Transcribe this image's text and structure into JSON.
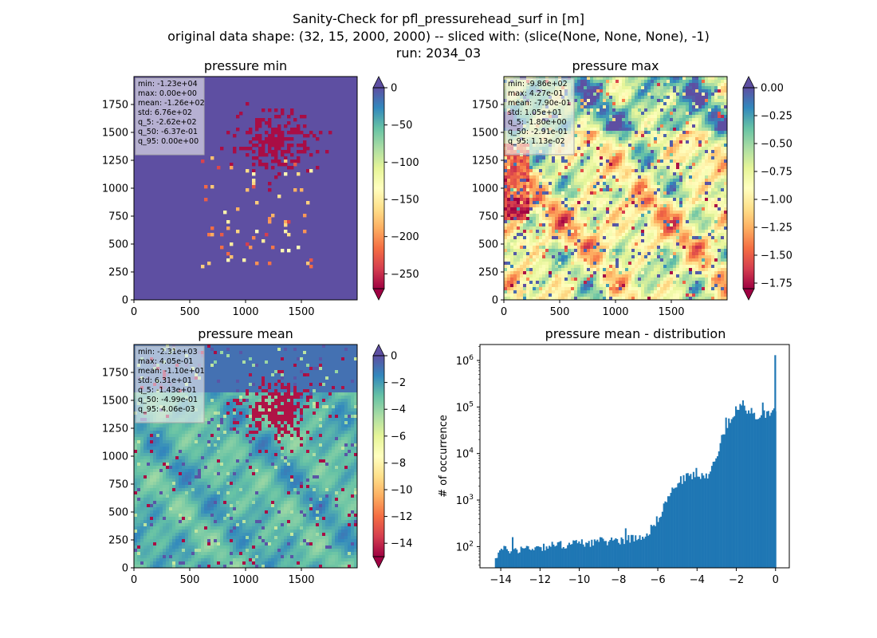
{
  "suptitle": [
    "Sanity-Check for pfl_pressurehead_surf in [m]",
    "original data shape: (32, 15, 2000, 2000) -- sliced with: (slice(None, None, None), -1)",
    "run: 2034_03"
  ],
  "colors": {
    "spectral": [
      "#9e0142",
      "#d53e4f",
      "#f46d43",
      "#fdae61",
      "#fee08b",
      "#ffffbf",
      "#e6f598",
      "#abdda4",
      "#66c2a5",
      "#3288bd",
      "#5e4fa2"
    ],
    "hist_bar": "#1f77b4",
    "min_bg": "#5e4fa2"
  },
  "chart_data": [
    {
      "type": "heatmap",
      "title": "pressure min",
      "xlim": [
        0,
        2000
      ],
      "ylim": [
        0,
        2000
      ],
      "x_ticks": [
        "0",
        "500",
        "1000",
        "1500"
      ],
      "y_ticks": [
        "0",
        "250",
        "500",
        "750",
        "1000",
        "1250",
        "1500",
        "1750"
      ],
      "colorbar": {
        "range": [
          -270,
          0
        ],
        "ticks": [
          "0",
          "−50",
          "−100",
          "−150",
          "−200",
          "−250"
        ],
        "extend": "both"
      },
      "stats": [
        "min: -1.23e+04",
        "max: 0.00e+00",
        "mean: -1.26e+02",
        "std: 6.76e+02",
        "q_5: -2.62e+02",
        "q_50: -6.37e-01",
        "q_95: 0.00e+00"
      ]
    },
    {
      "type": "heatmap",
      "title": "pressure max",
      "xlim": [
        0,
        2000
      ],
      "ylim": [
        0,
        2000
      ],
      "x_ticks": [
        "0",
        "500",
        "1000",
        "1500"
      ],
      "y_ticks": [
        "0",
        "250",
        "500",
        "750",
        "1000",
        "1250",
        "1500",
        "1750"
      ],
      "colorbar": {
        "range": [
          -1.8,
          0
        ],
        "ticks": [
          "0.00",
          "−0.25",
          "−0.50",
          "−0.75",
          "−1.00",
          "−1.25",
          "−1.50",
          "−1.75"
        ],
        "extend": "both"
      },
      "stats": [
        "min: -9.86e+02",
        "max: 4.27e-01",
        "mean: -7.90e-01",
        "std: 1.05e+01",
        "q_5: -1.80e+00",
        "q_50: -2.91e-01",
        "q_95: 1.13e-02"
      ]
    },
    {
      "type": "heatmap",
      "title": "pressure mean",
      "xlim": [
        0,
        2000
      ],
      "ylim": [
        0,
        2000
      ],
      "x_ticks": [
        "0",
        "500",
        "1000",
        "1500"
      ],
      "y_ticks": [
        "0",
        "250",
        "500",
        "750",
        "1000",
        "1250",
        "1500",
        "1750"
      ],
      "colorbar": {
        "range": [
          -15,
          0
        ],
        "ticks": [
          "0",
          "−2",
          "−4",
          "−6",
          "−8",
          "−10",
          "−12",
          "−14"
        ],
        "extend": "both"
      },
      "stats": [
        "min: -2.31e+03",
        "max: 4.05e-01",
        "mean: -1.10e+01",
        "std: 6.31e+01",
        "q_5: -1.43e+01",
        "q_50: -4.99e-01",
        "q_95: 4.06e-03"
      ]
    },
    {
      "type": "bar",
      "title": "pressure mean - distribution",
      "xlabel": "",
      "ylabel": "# of occurrence",
      "yscale": "log",
      "xlim": [
        -15.06,
        0.7
      ],
      "ylim": [
        35,
        2200000
      ],
      "x_ticks": [
        "−14",
        "−12",
        "−10",
        "−8",
        "−6",
        "−4",
        "−2",
        "0"
      ],
      "y_ticks": [
        "10^2",
        "10^3",
        "10^4",
        "10^5",
        "10^6"
      ],
      "bin_start": -14.3,
      "bin_width": 0.072,
      "profile": [
        [
          -14.3,
          60
        ],
        [
          -14.0,
          85
        ],
        [
          -13.0,
          90
        ],
        [
          -12.0,
          100
        ],
        [
          -11.0,
          110
        ],
        [
          -10.0,
          120
        ],
        [
          -9.0,
          130
        ],
        [
          -8.0,
          140
        ],
        [
          -7.0,
          160
        ],
        [
          -6.5,
          200
        ],
        [
          -6.0,
          400
        ],
        [
          -5.5,
          1100
        ],
        [
          -5.0,
          2400
        ],
        [
          -4.5,
          3300
        ],
        [
          -4.0,
          3400
        ],
        [
          -3.6,
          3000
        ],
        [
          -3.2,
          5500
        ],
        [
          -2.8,
          18000
        ],
        [
          -2.4,
          50000
        ],
        [
          -2.0,
          95000
        ],
        [
          -1.7,
          100000
        ],
        [
          -1.4,
          70000
        ],
        [
          -1.0,
          62000
        ],
        [
          -0.5,
          75000
        ],
        [
          -0.05,
          85000
        ]
      ],
      "spike": {
        "x": 0.0,
        "value": 1300000
      }
    }
  ]
}
